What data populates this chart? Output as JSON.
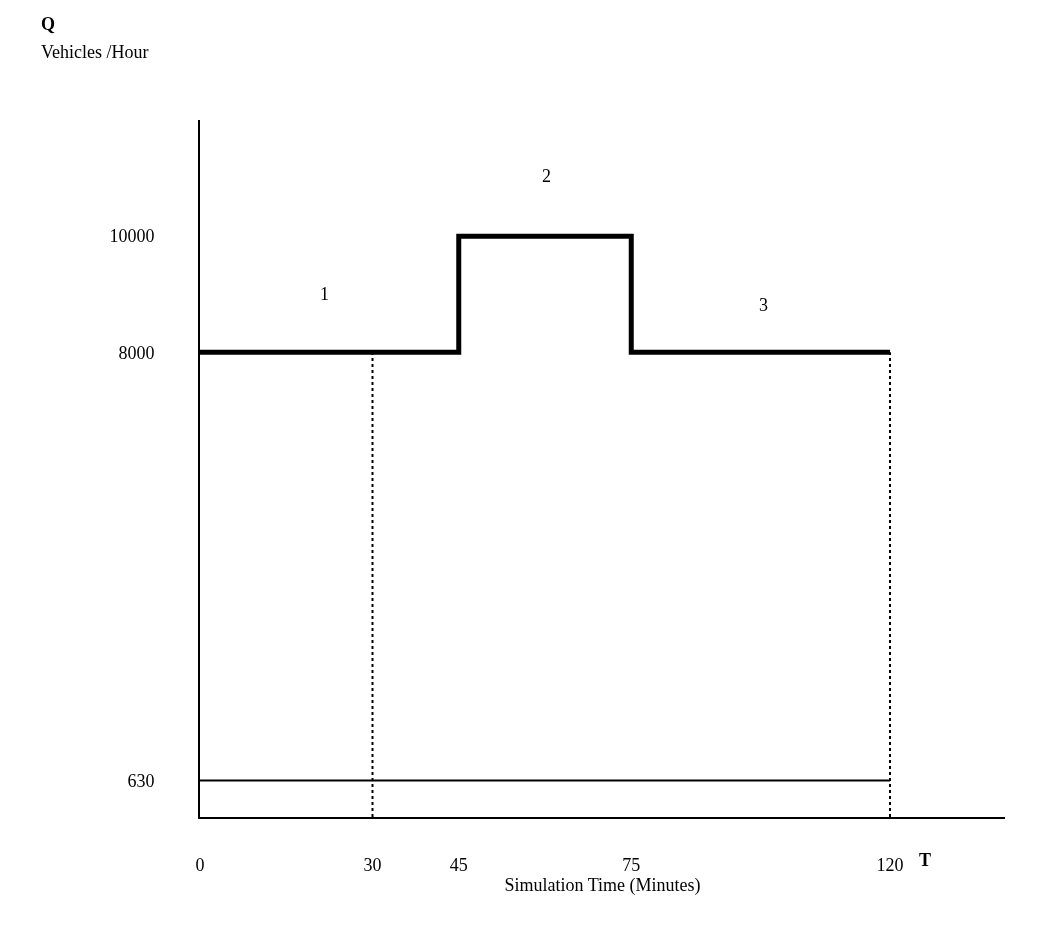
{
  "chart_data": {
    "type": "step",
    "xlabel": "Simulation Time (Minutes)",
    "ylabel": "Vehicles /Hour",
    "xlim": [
      0,
      140
    ],
    "ylim": [
      0,
      12000
    ],
    "xticks": [
      0,
      30,
      45,
      75,
      120
    ],
    "yticks": [
      630,
      8000,
      10000
    ],
    "grid": false,
    "series": [
      {
        "color": "#000000",
        "x": [
          0,
          45,
          75,
          120
        ],
        "values": [
          8000,
          10000,
          8000,
          8000
        ]
      },
      {
        "type": "line",
        "color": "#000000",
        "x": [
          0,
          120
        ],
        "values": [
          630,
          630
        ]
      },
      {
        "type": "line",
        "color": "#000000",
        "line_style": "dotted",
        "x": [
          30,
          30
        ],
        "values": [
          0,
          8000
        ]
      },
      {
        "type": "line",
        "color": "#000000",
        "line_style": "dotted",
        "x": [
          120,
          120
        ],
        "values": [
          0,
          8000
        ]
      }
    ],
    "annotations": [
      "Q",
      "T",
      "1",
      "2",
      "3"
    ]
  }
}
